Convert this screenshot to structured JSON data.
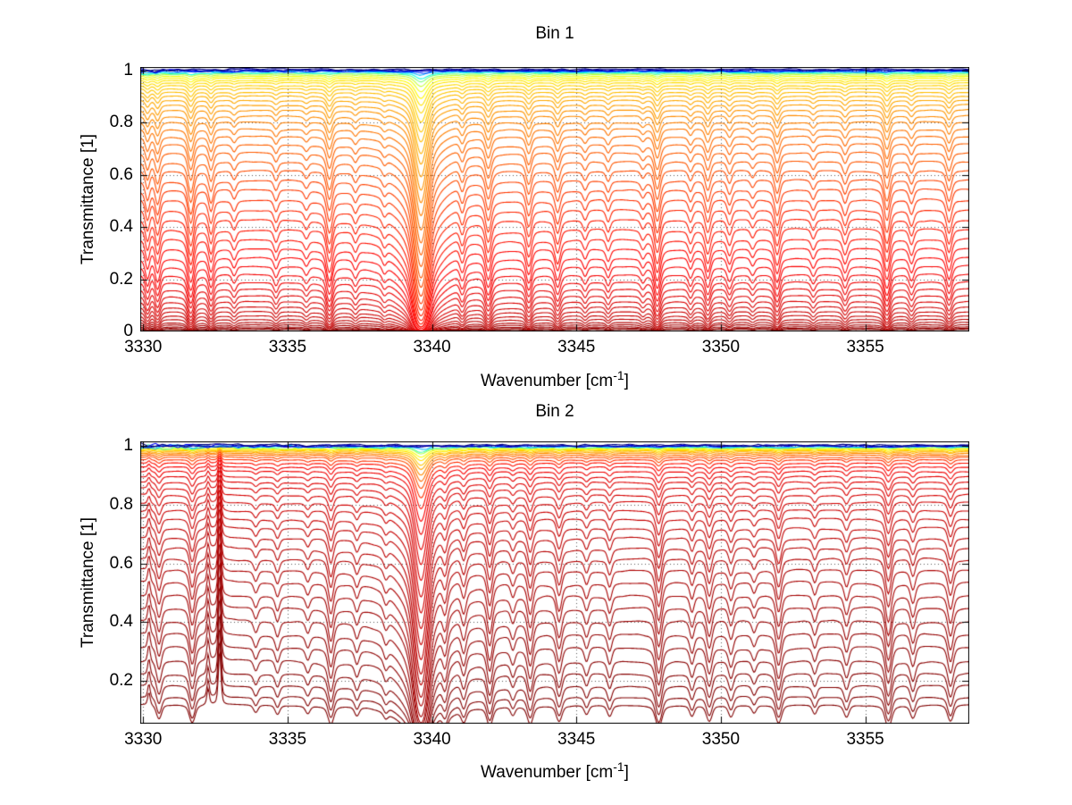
{
  "colors": {
    "background": "#ffffff",
    "axis": "#000000",
    "grid": "#000000"
  },
  "features_format": "[line_center_wavenumber_cm-1, relative_absorption_amplitude, half_width_cm-1]; negative amplitude = upward emission spike",
  "chart_data": [
    {
      "type": "line",
      "title": "Bin 1",
      "xlabel": "Wavenumber [cm⁻¹]",
      "xlabel_parts": {
        "prefix": "Wavenumber [cm",
        "sup": "-1",
        "suffix": "]"
      },
      "ylabel": "Transmittance [1]",
      "xlim": [
        3329.9,
        3358.6
      ],
      "ylim": [
        0,
        1.013
      ],
      "xticks": [
        3330,
        3335,
        3340,
        3345,
        3350,
        3355
      ],
      "xticklabels": [
        "3330",
        "3335",
        "3340",
        "3345",
        "3350",
        "3355"
      ],
      "yticks": [
        0,
        0.2,
        0.4,
        0.6,
        0.8,
        1
      ],
      "yticklabels": [
        "0",
        "0.2",
        "0.4",
        "0.6",
        "0.8",
        "1"
      ],
      "grid": "dotted",
      "legend": "none",
      "colormap": "jet",
      "n_curves": 51,
      "seed": 11,
      "noise": 0.003,
      "wobble": 0.01,
      "edge_noise": 2.5,
      "baselines": [
        1.004,
        1.001,
        0.999,
        0.997,
        0.995,
        0.992,
        0.988,
        0.983,
        0.977,
        0.97,
        0.962,
        0.953,
        0.942,
        0.93,
        0.917,
        0.902,
        0.886,
        0.868,
        0.848,
        0.826,
        0.802,
        0.776,
        0.748,
        0.718,
        0.686,
        0.652,
        0.617,
        0.581,
        0.544,
        0.506,
        0.468,
        0.43,
        0.392,
        0.355,
        0.319,
        0.284,
        0.251,
        0.22,
        0.191,
        0.164,
        0.139,
        0.116,
        0.095,
        0.077,
        0.061,
        0.047,
        0.035,
        0.026,
        0.018,
        0.012,
        0.008
      ],
      "color_positions": [
        0.0,
        0.04,
        0.1,
        0.18,
        0.3,
        0.4,
        0.5,
        0.57,
        0.61,
        0.63,
        0.65,
        0.66,
        0.67,
        0.68,
        0.69,
        0.7,
        0.71,
        0.72,
        0.73,
        0.74,
        0.75,
        0.76,
        0.77,
        0.78,
        0.785,
        0.79,
        0.8,
        0.81,
        0.82,
        0.83,
        0.84,
        0.85,
        0.855,
        0.86,
        0.87,
        0.875,
        0.88,
        0.885,
        0.89,
        0.9,
        0.905,
        0.91,
        0.92,
        0.925,
        0.93,
        0.94,
        0.95,
        0.96,
        0.97,
        0.98,
        1.0
      ],
      "features": [
        [
          3339.62,
          2.4,
          0.26
        ],
        [
          3339.62,
          0.3,
          0.9
        ],
        [
          3330.15,
          0.25,
          0.1
        ],
        [
          3330.5,
          0.3,
          0.11
        ],
        [
          3331.65,
          0.45,
          0.13
        ],
        [
          3332.35,
          0.28,
          0.11
        ],
        [
          3333.15,
          0.12,
          0.1
        ],
        [
          3334.6,
          0.14,
          0.1
        ],
        [
          3335.65,
          0.1,
          0.1
        ],
        [
          3336.45,
          0.4,
          0.13
        ],
        [
          3337.35,
          0.12,
          0.1
        ],
        [
          3338.35,
          0.1,
          0.1
        ],
        [
          3341.05,
          0.22,
          0.11
        ],
        [
          3341.95,
          0.38,
          0.13
        ],
        [
          3343.35,
          0.32,
          0.12
        ],
        [
          3344.35,
          0.28,
          0.12
        ],
        [
          3345.3,
          0.12,
          0.1
        ],
        [
          3346.1,
          0.14,
          0.1
        ],
        [
          3347.3,
          0.1,
          0.1
        ],
        [
          3347.8,
          0.42,
          0.13
        ],
        [
          3348.95,
          0.14,
          0.1
        ],
        [
          3349.55,
          0.28,
          0.12
        ],
        [
          3350.3,
          0.18,
          0.11
        ],
        [
          3351.1,
          0.1,
          0.1
        ],
        [
          3351.95,
          0.32,
          0.12
        ],
        [
          3353.2,
          0.12,
          0.1
        ],
        [
          3354.3,
          0.18,
          0.11
        ],
        [
          3355.75,
          0.42,
          0.13
        ],
        [
          3356.6,
          0.18,
          0.11
        ],
        [
          3357.9,
          0.28,
          0.12
        ]
      ]
    },
    {
      "type": "line",
      "title": "Bin 2",
      "xlabel": "Wavenumber [cm⁻¹]",
      "xlabel_parts": {
        "prefix": "Wavenumber [cm",
        "sup": "-1",
        "suffix": "]"
      },
      "ylabel": "Transmittance [1]",
      "xlim": [
        3329.9,
        3358.6
      ],
      "ylim": [
        0.055,
        1.015
      ],
      "xticks": [
        3330,
        3335,
        3340,
        3345,
        3350,
        3355
      ],
      "xticklabels": [
        "3330",
        "3335",
        "3340",
        "3345",
        "3350",
        "3355"
      ],
      "yticks": [
        0.2,
        0.4,
        0.6,
        0.8,
        1
      ],
      "yticklabels": [
        "0.2",
        "0.4",
        "0.6",
        "0.8",
        "1"
      ],
      "grid": "dotted",
      "legend": "none",
      "colormap": "jet",
      "n_curves": 40,
      "seed": 77,
      "noise": 0.0035,
      "wobble": 0.012,
      "edge_noise": 2.5,
      "baselines": [
        1.002,
        1.0,
        0.999,
        0.997,
        0.995,
        0.993,
        0.99,
        0.987,
        0.983,
        0.979,
        0.974,
        0.968,
        0.961,
        0.952,
        0.941,
        0.928,
        0.913,
        0.896,
        0.877,
        0.856,
        0.833,
        0.808,
        0.781,
        0.752,
        0.721,
        0.688,
        0.653,
        0.616,
        0.577,
        0.536,
        0.494,
        0.451,
        0.407,
        0.362,
        0.317,
        0.272,
        0.228,
        0.185,
        0.148,
        0.12
      ],
      "color_positions": [
        0.0,
        0.05,
        0.12,
        0.3,
        0.45,
        0.55,
        0.62,
        0.65,
        0.68,
        0.71,
        0.74,
        0.77,
        0.8,
        0.83,
        0.86,
        0.88,
        0.89,
        0.9,
        0.905,
        0.91,
        0.915,
        0.92,
        0.925,
        0.93,
        0.935,
        0.94,
        0.945,
        0.95,
        0.955,
        0.96,
        0.965,
        0.97,
        0.975,
        0.98,
        0.985,
        0.99,
        0.993,
        0.996,
        0.998,
        1.0
      ],
      "features": [
        [
          3339.62,
          2.6,
          0.26
        ],
        [
          3339.62,
          0.35,
          0.9
        ],
        [
          3332.65,
          -0.45,
          0.07
        ],
        [
          3332.25,
          -0.18,
          0.06
        ],
        [
          3330.2,
          -0.15,
          0.06
        ],
        [
          3330.55,
          0.25,
          0.11
        ],
        [
          3331.7,
          0.35,
          0.12
        ],
        [
          3333.9,
          0.12,
          0.1
        ],
        [
          3334.65,
          0.15,
          0.1
        ],
        [
          3335.7,
          0.12,
          0.1
        ],
        [
          3336.5,
          0.35,
          0.12
        ],
        [
          3337.4,
          0.15,
          0.1
        ],
        [
          3338.4,
          0.12,
          0.1
        ],
        [
          3340.45,
          0.3,
          0.11
        ],
        [
          3341.1,
          0.25,
          0.11
        ],
        [
          3342.0,
          0.4,
          0.12
        ],
        [
          3342.8,
          0.15,
          0.1
        ],
        [
          3343.4,
          0.35,
          0.12
        ],
        [
          3344.4,
          0.3,
          0.12
        ],
        [
          3345.35,
          0.15,
          0.1
        ],
        [
          3346.15,
          0.18,
          0.1
        ],
        [
          3347.85,
          0.45,
          0.13
        ],
        [
          3349.0,
          0.18,
          0.1
        ],
        [
          3349.6,
          0.3,
          0.12
        ],
        [
          3350.35,
          0.2,
          0.11
        ],
        [
          3351.15,
          0.12,
          0.1
        ],
        [
          3352.0,
          0.35,
          0.12
        ],
        [
          3353.25,
          0.15,
          0.1
        ],
        [
          3354.35,
          0.2,
          0.11
        ],
        [
          3355.8,
          0.45,
          0.13
        ],
        [
          3356.65,
          0.22,
          0.11
        ],
        [
          3357.95,
          0.3,
          0.12
        ]
      ]
    }
  ]
}
